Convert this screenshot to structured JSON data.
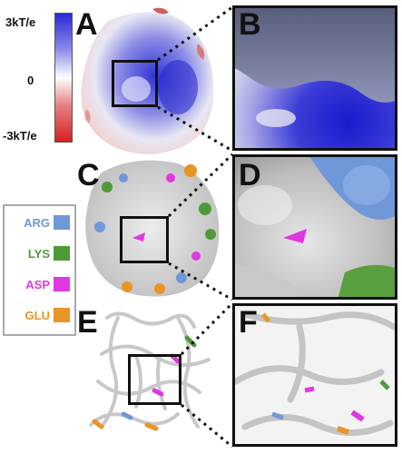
{
  "panels": {
    "a": "A",
    "b": "B",
    "c": "C",
    "d": "D",
    "e": "E",
    "f": "F"
  },
  "scale": {
    "top": "3kT/e",
    "mid": "0",
    "bottom": "-3kT/e"
  },
  "legend": [
    {
      "label": "ARG",
      "color": "#6f98d8"
    },
    {
      "label": "LYS",
      "color": "#4f9a38"
    },
    {
      "label": "ASP",
      "color": "#e038e0"
    },
    {
      "label": "GLU",
      "color": "#e89426"
    }
  ],
  "colors": {
    "positive": "#2a2ad8",
    "neutral": "#ffffff",
    "negative": "#d61f1f",
    "surface_grey": "#d4d4d4"
  }
}
